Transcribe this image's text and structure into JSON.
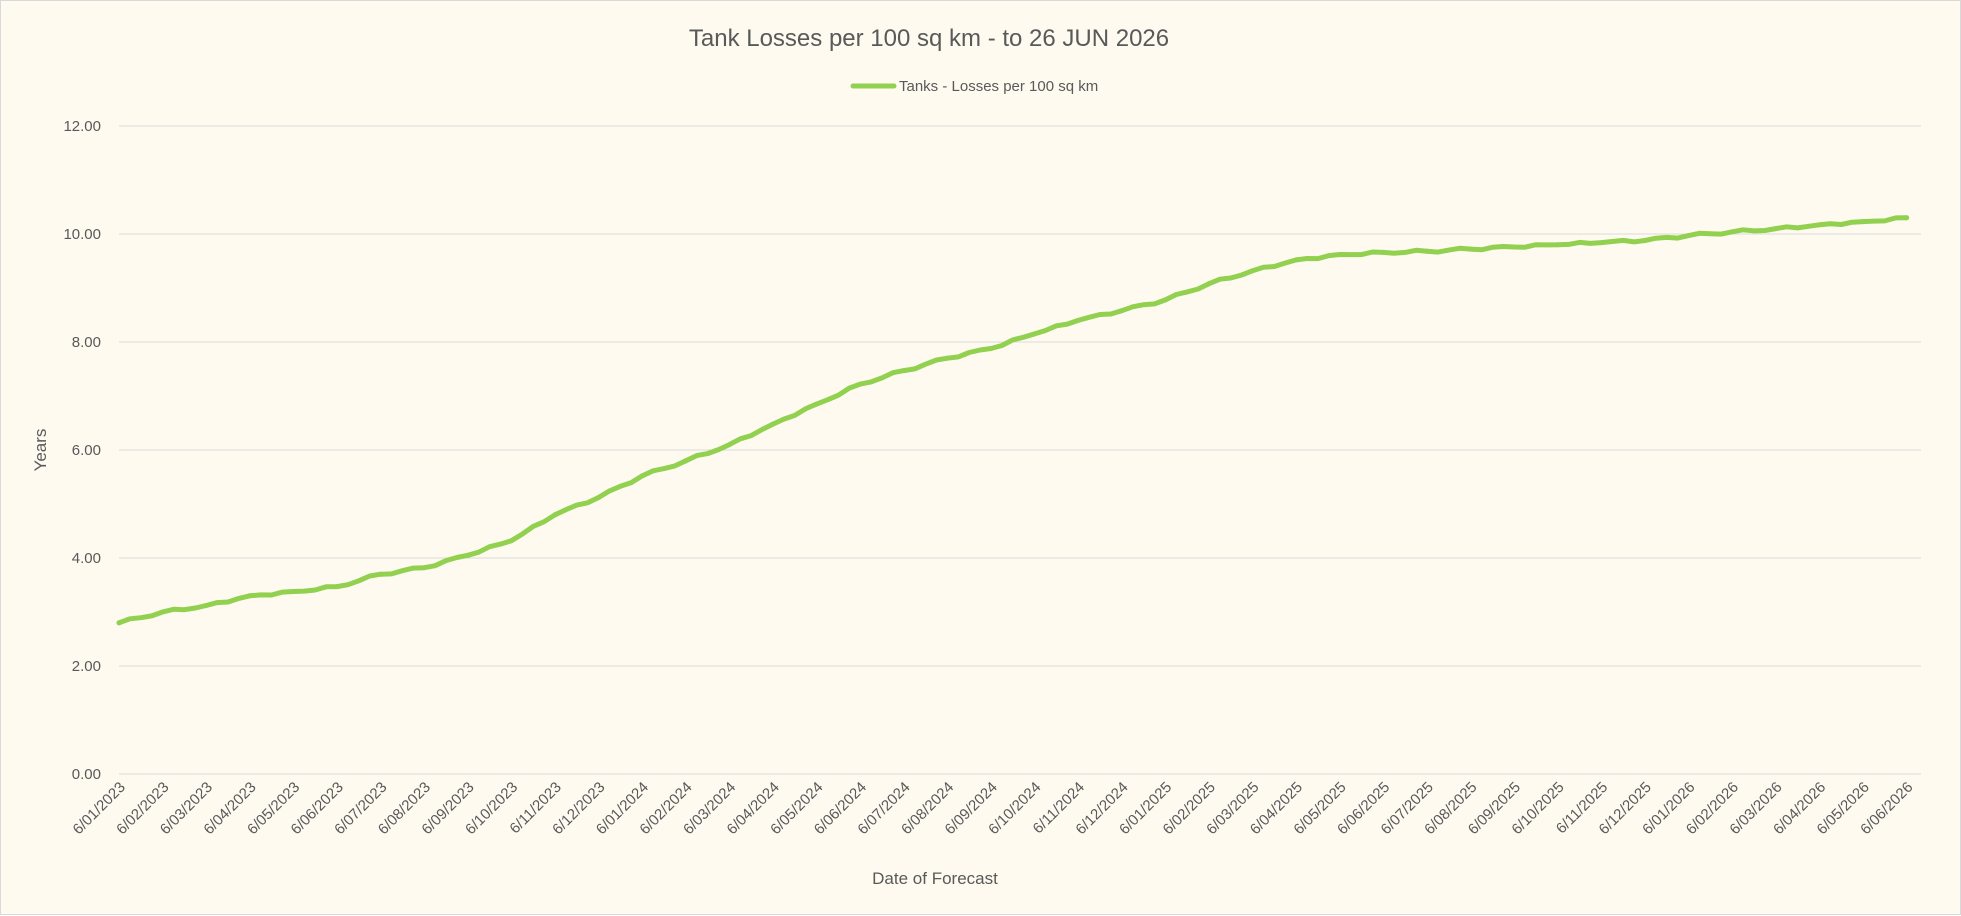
{
  "chart_data": {
    "type": "line",
    "title": "Tank Losses per 100 sq km - to 26 JUN 2026",
    "xlabel": "Date of Forecast",
    "ylabel": "Years",
    "ylim": [
      0,
      12
    ],
    "y_ticks": [
      "0.00",
      "2.00",
      "4.00",
      "6.00",
      "8.00",
      "10.00",
      "12.00"
    ],
    "grid": "horizontal",
    "legend_position": "top",
    "series_color": "#92d050",
    "categories": [
      "6/01/2023",
      "6/02/2023",
      "6/03/2023",
      "6/04/2023",
      "6/05/2023",
      "6/06/2023",
      "6/07/2023",
      "6/08/2023",
      "6/09/2023",
      "6/10/2023",
      "6/11/2023",
      "6/12/2023",
      "6/01/2024",
      "6/02/2024",
      "6/03/2024",
      "6/04/2024",
      "6/05/2024",
      "6/06/2024",
      "6/07/2024",
      "6/08/2024",
      "6/09/2024",
      "6/10/2024",
      "6/11/2024",
      "6/12/2024",
      "6/01/2025",
      "6/02/2025",
      "6/03/2025",
      "6/04/2025",
      "6/05/2025",
      "6/06/2025",
      "6/07/2025",
      "6/08/2025",
      "6/09/2025",
      "6/10/2025",
      "6/11/2025",
      "6/12/2025",
      "6/01/2026",
      "6/02/2026",
      "6/03/2026",
      "6/04/2026",
      "6/05/2026",
      "6/06/2026"
    ],
    "series": [
      {
        "name": "Tanks - Losses per 100 sq km",
        "values": [
          2.8,
          3.0,
          3.12,
          3.3,
          3.38,
          3.47,
          3.7,
          3.82,
          4.05,
          4.32,
          4.8,
          5.12,
          5.52,
          5.8,
          6.1,
          6.48,
          6.85,
          7.22,
          7.47,
          7.7,
          7.88,
          8.15,
          8.4,
          8.58,
          8.78,
          9.08,
          9.32,
          9.52,
          9.62,
          9.66,
          9.68,
          9.72,
          9.76,
          9.8,
          9.84,
          9.88,
          9.97,
          10.04,
          10.1,
          10.17,
          10.23,
          10.3
        ]
      }
    ]
  }
}
